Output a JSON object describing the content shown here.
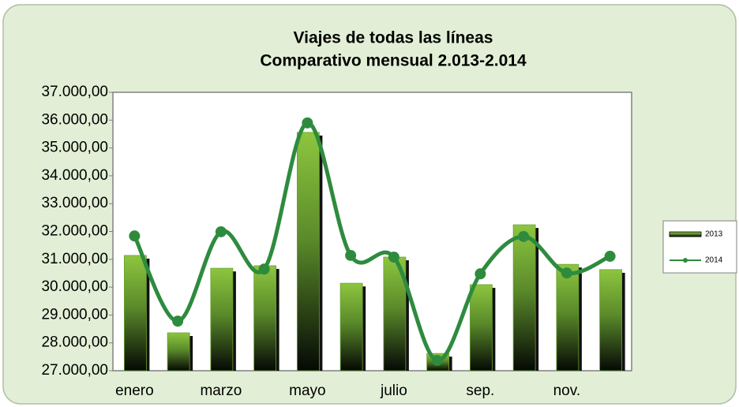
{
  "chart_data": {
    "type": "bar-line",
    "title": "Viajes de todas las líneas",
    "subtitle": "Comparativo mensual 2.013-2.014",
    "categories": [
      "enero",
      null,
      "marzo",
      null,
      "mayo",
      null,
      "julio",
      null,
      "sep.",
      null,
      "nov.",
      null
    ],
    "series": [
      {
        "name": "2013",
        "type": "bar",
        "color": "#8dc63f",
        "values": [
          31140,
          28360,
          30680,
          30770,
          35560,
          30140,
          31080,
          27620,
          30090,
          32240,
          30820,
          30630
        ]
      },
      {
        "name": "2014",
        "type": "line",
        "color": "#2e8b3e",
        "smooth": true,
        "values": [
          31840,
          28780,
          31990,
          30650,
          35900,
          31140,
          31080,
          27370,
          30480,
          31820,
          30510,
          31110
        ]
      }
    ],
    "ylim": [
      27000,
      37000
    ],
    "yticks": [
      {
        "value": 27000,
        "label": "27.000,00"
      },
      {
        "value": 28000,
        "label": "28.000,00"
      },
      {
        "value": 29000,
        "label": "29.000,00"
      },
      {
        "value": 30000,
        "label": "30.000,00"
      },
      {
        "value": 31000,
        "label": "31.000,00"
      },
      {
        "value": 32000,
        "label": "32.000,00"
      },
      {
        "value": 33000,
        "label": "33.000,00"
      },
      {
        "value": 34000,
        "label": "34.000,00"
      },
      {
        "value": 35000,
        "label": "35.000,00"
      },
      {
        "value": 36000,
        "label": "36.000,00"
      },
      {
        "value": 37000,
        "label": "37.000,00"
      }
    ],
    "legend": "right"
  }
}
